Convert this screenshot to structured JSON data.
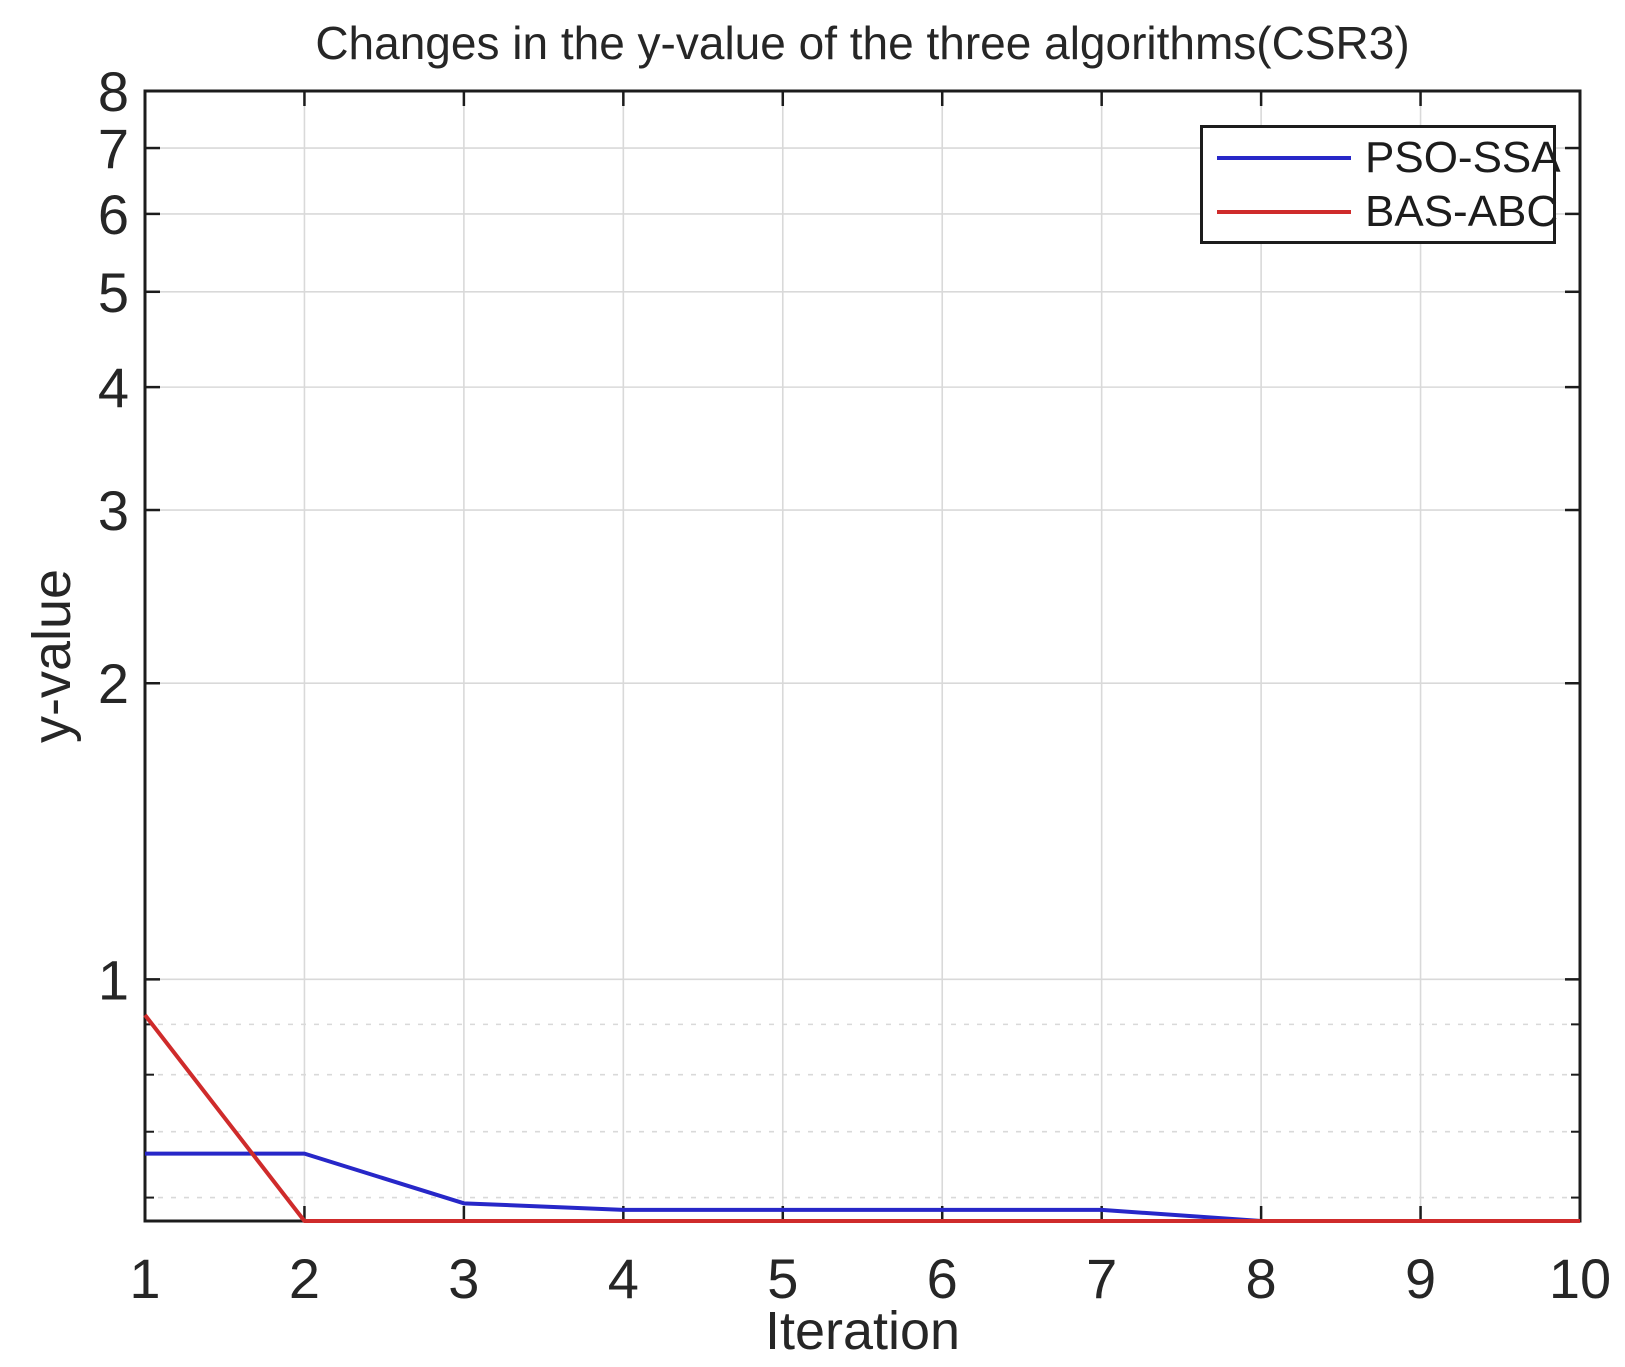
{
  "page": {
    "background": "#ffffff"
  },
  "chart_data": {
    "type": "line",
    "title": "Changes in the y-value of the three algorithms(CSR3)",
    "xlabel": "Iteration",
    "ylabel": "y-value",
    "x": [
      1,
      2,
      3,
      4,
      5,
      6,
      7,
      8,
      9,
      10
    ],
    "xlim": [
      1,
      10
    ],
    "xticks": [
      1,
      2,
      3,
      4,
      5,
      6,
      7,
      8,
      9,
      10
    ],
    "yscale": "log",
    "ylim": [
      0.568,
      8
    ],
    "yticks": [
      1,
      2,
      3,
      4,
      5,
      6,
      7,
      8
    ],
    "y_minor_gridlines": [
      0.9,
      0.8,
      0.7,
      0.6
    ],
    "grid": true,
    "legend_position": "top-right",
    "series": [
      {
        "name": "PSO-SSA",
        "color": "#2727c8",
        "values": [
          0.665,
          0.665,
          0.592,
          0.583,
          0.583,
          0.583,
          0.583,
          0.568,
          0.568,
          0.568
        ]
      },
      {
        "name": "BAS-ABC",
        "color": "#cf2b2b",
        "values": [
          0.92,
          0.568,
          0.568,
          0.568,
          0.568,
          0.568,
          0.568,
          0.568,
          0.568,
          0.568
        ]
      }
    ],
    "axis_color": "#1c1c1c",
    "grid_color": "#d9d9d9",
    "tick_label_color": "#262626"
  }
}
